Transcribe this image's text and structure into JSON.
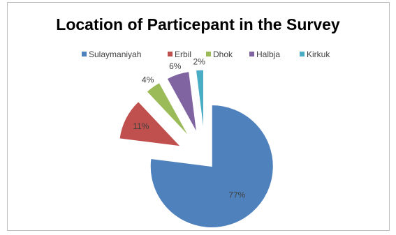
{
  "chart_data": {
    "type": "pie",
    "title": "Location of Particepant in the Survey",
    "categories": [
      "Sulaymaniyah",
      "Erbil",
      "Dhok",
      "Halbja",
      "Kirkuk"
    ],
    "values": [
      77,
      11,
      4,
      6,
      2
    ],
    "data_labels": [
      "77%",
      "11%",
      "4%",
      "6%",
      "2%"
    ],
    "colors": [
      "#4f81bd",
      "#c0504d",
      "#9bbb59",
      "#8064a2",
      "#4bacc6"
    ],
    "legend_position": "top",
    "exploded": true
  }
}
